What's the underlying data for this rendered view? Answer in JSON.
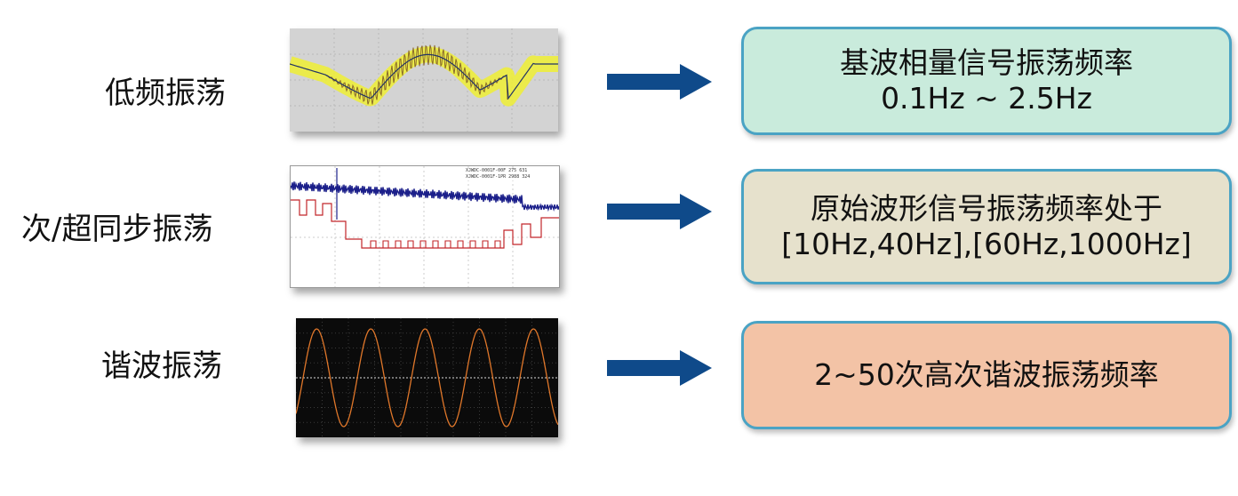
{
  "rows": [
    {
      "label": "低频振荡",
      "box_lines": [
        "基波相量信号振荡频率",
        "0.1Hz ~ 2.5Hz"
      ],
      "box_color": "#c9ebdc"
    },
    {
      "label": "次/超同步振荡",
      "box_lines": [
        "原始波形信号振荡频率处于",
        "[10Hz,40Hz],[60Hz,1000Hz]"
      ],
      "box_color": "#e6e1cc"
    },
    {
      "label": "谐波振荡",
      "box_lines": [
        "2~50次高次谐波振荡频率"
      ],
      "box_color": "#f3c3a6"
    }
  ],
  "waveform_legend": {
    "line1": "XJWDC-0001F-00F   275 631",
    "line2": "XJWDC-0001F-1PR   2988 324"
  },
  "colors": {
    "arrow": "#0f4a8a",
    "box_border": "#4aa3c4"
  },
  "icons": [
    "right-arrow-icon"
  ]
}
